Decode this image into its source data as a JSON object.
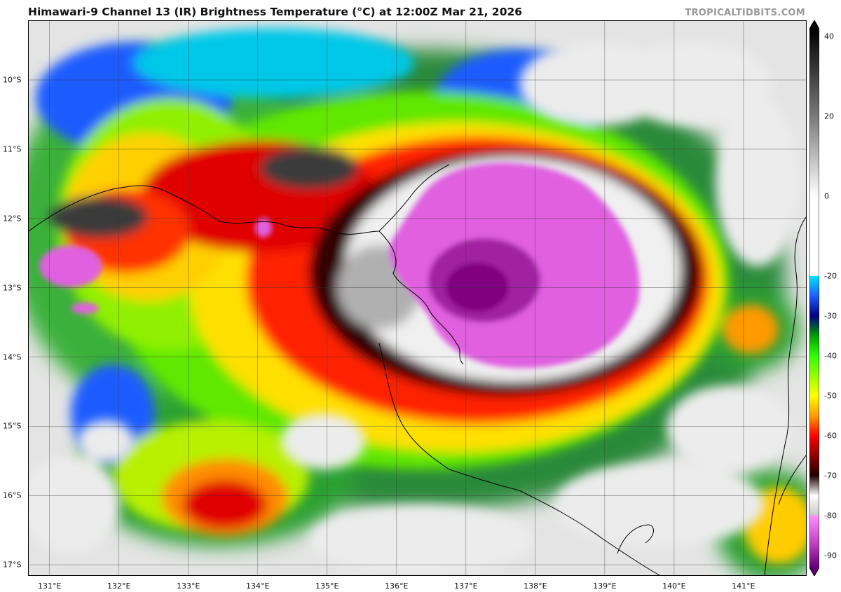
{
  "header": {
    "title": "Himawari-9 Channel 13 (IR) Brightness Temperature (°C) at 12:00Z Mar 21, 2026",
    "credit": "TROPICALTIDBITS.COM"
  },
  "map": {
    "latitude_labels": [
      {
        "text": "10°S",
        "lat": -10
      },
      {
        "text": "11°S",
        "lat": -11
      },
      {
        "text": "12°S",
        "lat": -12
      },
      {
        "text": "13°S",
        "lat": -13
      },
      {
        "text": "14°S",
        "lat": -14
      },
      {
        "text": "15°S",
        "lat": -15
      },
      {
        "text": "16°S",
        "lat": -16
      },
      {
        "text": "17°S",
        "lat": -17
      }
    ],
    "longitude_labels": [
      {
        "text": "131°E",
        "lon": 131
      },
      {
        "text": "132°E",
        "lon": 132
      },
      {
        "text": "133°E",
        "lon": 133
      },
      {
        "text": "134°E",
        "lon": 134
      },
      {
        "text": "135°E",
        "lon": 135
      },
      {
        "text": "136°E",
        "lon": 136
      },
      {
        "text": "137°E",
        "lon": 137
      },
      {
        "text": "138°E",
        "lon": 138
      },
      {
        "text": "139°E",
        "lon": 139
      },
      {
        "text": "140°E",
        "lon": 140
      },
      {
        "text": "141°E",
        "lon": 141
      }
    ],
    "extent": {
      "lon_min": 130.7,
      "lon_max": 141.9,
      "lat_min": -17.15,
      "lat_max": -9.15
    }
  },
  "colorbar": {
    "labels": [
      "40",
      "20",
      "0",
      "-20",
      "-30",
      "-40",
      "-50",
      "-60",
      "-70",
      "-80",
      "-90"
    ],
    "values": [
      40,
      20,
      0,
      -20,
      -30,
      -40,
      -50,
      -60,
      -70,
      -80,
      -90
    ],
    "range": [
      -93,
      42
    ],
    "stops": [
      {
        "t": 42,
        "color": "#000000"
      },
      {
        "t": 20,
        "color": "#7a7a7a"
      },
      {
        "t": 0,
        "color": "#ffffff"
      },
      {
        "t": -19.9,
        "color": "#ffffff"
      },
      {
        "t": -20,
        "color": "#00e5ff"
      },
      {
        "t": -25,
        "color": "#1e5cff"
      },
      {
        "t": -30,
        "color": "#000080"
      },
      {
        "t": -35,
        "color": "#00a000"
      },
      {
        "t": -40,
        "color": "#30ff00"
      },
      {
        "t": -50,
        "color": "#ffff00"
      },
      {
        "t": -55,
        "color": "#ff9a00"
      },
      {
        "t": -60,
        "color": "#ff0000"
      },
      {
        "t": -70,
        "color": "#200000"
      },
      {
        "t": -75,
        "color": "#ffffff"
      },
      {
        "t": -79.9,
        "color": "#c8c8c8"
      },
      {
        "t": -80,
        "color": "#ff90ff"
      },
      {
        "t": -87,
        "color": "#c040c0"
      },
      {
        "t": -93,
        "color": "#600070"
      }
    ]
  },
  "colors": {
    "cold_core": "#e060e0",
    "deep_core": "#900090",
    "land_outline": "#000000",
    "grid": "#333333"
  }
}
